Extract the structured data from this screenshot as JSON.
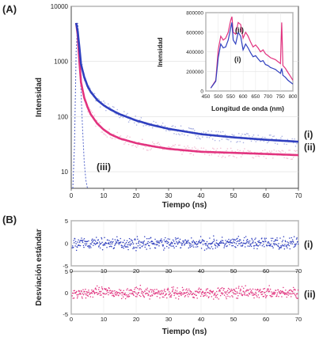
{
  "colors": {
    "series_i": "#2f3fbf",
    "series_ii": "#e2337f",
    "scatter_i_light": "#8c95d9",
    "scatter_ii_light": "#f0a9c6",
    "iii": "#5566cc"
  },
  "panel_labels": {
    "a": "(A)",
    "b": "(B)"
  },
  "chart_data": [
    {
      "type": "line",
      "panel": "(A)",
      "xlabel": "Tiempo (ns)",
      "ylabel": "Intensidad",
      "yscale": "log",
      "xlim": [
        0,
        70
      ],
      "ylim": [
        5,
        10000
      ],
      "xticks": [
        "0",
        "10",
        "20",
        "30",
        "40",
        "50",
        "60",
        "70"
      ],
      "yticks": [
        "10",
        "100",
        "1000",
        "10000"
      ],
      "series": [
        {
          "name": "(i)",
          "x": [
            1.5,
            2,
            2.5,
            3,
            4,
            5,
            6,
            8,
            10,
            12,
            15,
            20,
            25,
            30,
            40,
            50,
            60,
            70
          ],
          "values": [
            5000,
            3500,
            1800,
            900,
            520,
            360,
            280,
            200,
            160,
            135,
            110,
            85,
            70,
            60,
            48,
            42,
            38,
            35
          ]
        },
        {
          "name": "(ii)",
          "x": [
            1.5,
            2,
            2.5,
            3,
            4,
            5,
            6,
            8,
            10,
            12,
            15,
            20,
            25,
            30,
            40,
            50,
            60,
            70
          ],
          "values": [
            5000,
            3000,
            1000,
            420,
            220,
            150,
            110,
            75,
            58,
            48,
            40,
            33,
            29,
            26,
            23,
            22,
            21,
            20
          ]
        },
        {
          "name": "(iii)",
          "x": [
            0.5,
            1,
            1.5,
            2,
            2.5,
            3,
            3.5,
            4,
            4.5,
            5
          ],
          "values": [
            5,
            30,
            1500,
            5000,
            1800,
            300,
            60,
            15,
            7,
            5
          ]
        }
      ],
      "inset": {
        "type": "line",
        "xlabel": "Longitud de onda  (nm)",
        "ylabel": "Inensidad",
        "xlim": [
          450,
          800
        ],
        "ylim": [
          0,
          800000
        ],
        "xticks": [
          "450",
          "500",
          "550",
          "600",
          "650",
          "700",
          "750",
          "800"
        ],
        "yticks": [
          "0",
          "200000",
          "400000",
          "600000",
          "800000"
        ],
        "series": [
          {
            "name": "(i)",
            "x": [
              470,
              490,
              500,
              510,
              520,
              530,
              540,
              550,
              555,
              560,
              570,
              580,
              590,
              600,
              610,
              620,
              630,
              640,
              650,
              660,
              670,
              680,
              690,
              700,
              710,
              720,
              730,
              740,
              750,
              755,
              760,
              770,
              780,
              790,
              800
            ],
            "values": [
              30000,
              100000,
              340000,
              480000,
              440000,
              450000,
              520000,
              640000,
              700000,
              520000,
              480000,
              600000,
              560000,
              420000,
              480000,
              440000,
              390000,
              350000,
              360000,
              330000,
              300000,
              310000,
              270000,
              260000,
              240000,
              230000,
              220000,
              200000,
              180000,
              230000,
              160000,
              140000,
              110000,
              90000,
              70000
            ]
          },
          {
            "name": "(ii)",
            "x": [
              470,
              490,
              500,
              510,
              520,
              530,
              540,
              550,
              555,
              560,
              570,
              580,
              590,
              600,
              610,
              620,
              630,
              640,
              650,
              660,
              670,
              680,
              690,
              700,
              710,
              720,
              730,
              740,
              750,
              755,
              760,
              770,
              780,
              790,
              800
            ],
            "values": [
              30000,
              110000,
              420000,
              560000,
              520000,
              540000,
              600000,
              720000,
              760000,
              600000,
              580000,
              700000,
              680000,
              540000,
              600000,
              560000,
              500000,
              450000,
              470000,
              440000,
              400000,
              420000,
              380000,
              360000,
              340000,
              330000,
              320000,
              300000,
              280000,
              700000,
              260000,
              230000,
              190000,
              150000,
              110000
            ]
          }
        ]
      },
      "annotations": [
        "(i)",
        "(ii)",
        "(iii)",
        "(ii)",
        "(i)"
      ]
    },
    {
      "type": "scatter",
      "panel": "(B)",
      "xlabel": "Tiempo (ns)",
      "ylabel": "Desviación estándar",
      "xlim": [
        0,
        70
      ],
      "ylim": [
        -5,
        5
      ],
      "xticks": [
        "0",
        "10",
        "20",
        "30",
        "40",
        "50",
        "60",
        "70"
      ],
      "yticks": [
        "-5",
        "0",
        "5"
      ],
      "series": [
        {
          "name": "(i)",
          "spread": 1.5
        },
        {
          "name": "(ii)",
          "spread": 1.5
        }
      ]
    }
  ]
}
